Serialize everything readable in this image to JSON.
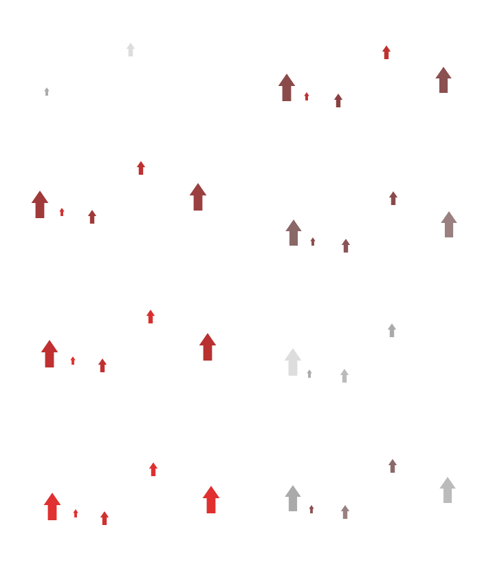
{
  "chart_data": [
    {
      "type": "scatter",
      "marker": "arrow",
      "tick_labels": false,
      "xlim": [
        0,
        366
      ],
      "ylim": [
        0,
        206
      ],
      "x": [
        190,
        68
      ],
      "y": [
        72,
        133
      ],
      "sizes": [
        20,
        12
      ],
      "colors": [
        "#dddddd",
        "#aaaaaa"
      ]
    },
    {
      "type": "scatter",
      "marker": "arrow",
      "tick_labels": false,
      "xlim": [
        0,
        366
      ],
      "ylim": [
        0,
        206
      ],
      "x": [
        51,
        80,
        126,
        196,
        279
      ],
      "y": [
        127,
        140,
        146,
        76,
        116
      ],
      "sizes": [
        40,
        12,
        20,
        20,
        38
      ],
      "colors": [
        "#8b4a4a",
        "#c03030",
        "#8b4040",
        "#c03030",
        "#8b5050"
      ]
    },
    {
      "type": "scatter",
      "marker": "arrow",
      "tick_labels": false,
      "xlim": [
        0,
        366
      ],
      "ylim": [
        0,
        206
      ],
      "x": [
        58,
        90,
        134,
        205,
        288
      ],
      "y": [
        91,
        102,
        109,
        38,
        80
      ],
      "sizes": [
        40,
        12,
        20,
        20,
        40
      ],
      "colors": [
        "#a03a3a",
        "#d03030",
        "#a03a3a",
        "#c03030",
        "#9a4040"
      ]
    },
    {
      "type": "scatter",
      "marker": "arrow",
      "tick_labels": false,
      "xlim": [
        0,
        366
      ],
      "ylim": [
        0,
        206
      ],
      "x": [
        61,
        89,
        137,
        206,
        287
      ],
      "y": [
        132,
        145,
        151,
        82,
        120
      ],
      "sizes": [
        38,
        12,
        20,
        20,
        38
      ],
      "colors": [
        "#8a6868",
        "#8b4a4a",
        "#8a5555",
        "#8b4a4a",
        "#9a8080"
      ]
    },
    {
      "type": "scatter",
      "marker": "arrow",
      "tick_labels": false,
      "xlim": [
        0,
        366
      ],
      "ylim": [
        0,
        206
      ],
      "x": [
        72,
        106,
        149,
        219,
        302
      ],
      "y": [
        102,
        112,
        119,
        48,
        92
      ],
      "sizes": [
        40,
        12,
        20,
        20,
        40
      ],
      "colors": [
        "#c03030",
        "#e03030",
        "#c03030",
        "#d83030",
        "#b83030"
      ]
    },
    {
      "type": "scatter",
      "marker": "arrow",
      "tick_labels": false,
      "xlim": [
        0,
        366
      ],
      "ylim": [
        0,
        206
      ],
      "x": [
        60,
        84,
        135,
        204
      ],
      "y": [
        114,
        131,
        134,
        68
      ],
      "sizes": [
        40,
        12,
        20,
        20
      ],
      "colors": [
        "#dddddd",
        "#aaaaaa",
        "#bbbbbb",
        "#aaaaaa"
      ]
    },
    {
      "type": "scatter",
      "marker": "arrow",
      "tick_labels": false,
      "xlim": [
        0,
        366
      ],
      "ylim": [
        0,
        206
      ],
      "x": [
        76,
        110,
        152,
        223,
        307
      ],
      "y": [
        118,
        128,
        135,
        64,
        108
      ],
      "sizes": [
        40,
        12,
        20,
        20,
        40
      ],
      "colors": [
        "#e03030",
        "#e03030",
        "#d03030",
        "#e03030",
        "#e03030"
      ]
    },
    {
      "type": "scatter",
      "marker": "arrow",
      "tick_labels": false,
      "xlim": [
        0,
        366
      ],
      "ylim": [
        0,
        206
      ],
      "x": [
        60,
        87,
        136,
        205,
        285
      ],
      "y": [
        106,
        122,
        126,
        59,
        94
      ],
      "sizes": [
        38,
        12,
        20,
        20,
        38
      ],
      "colors": [
        "#aaaaaa",
        "#8b5050",
        "#998080",
        "#8a6a6a",
        "#bbbbbb"
      ]
    }
  ]
}
